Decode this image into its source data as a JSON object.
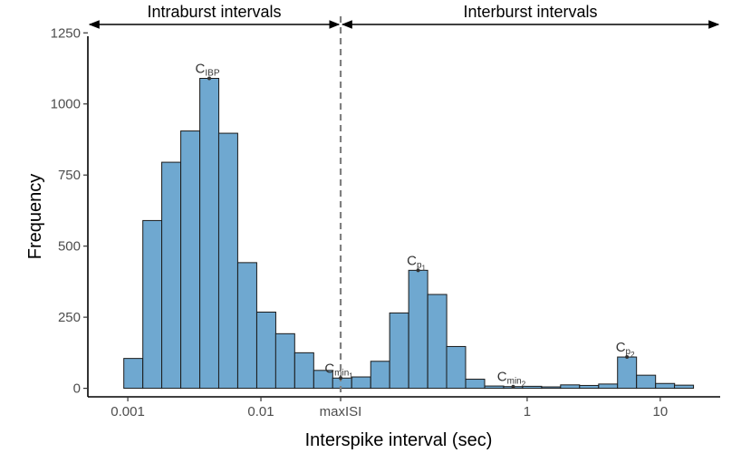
{
  "chart_data": {
    "type": "bar",
    "xlabel": "Interspike interval (sec)",
    "ylabel": "Frequency",
    "x_scale": "log10",
    "xlim_log10": [
      -3.3,
      1.45
    ],
    "ylim": [
      -30,
      1270
    ],
    "y_ticks": [
      0,
      250,
      500,
      750,
      1000,
      1250
    ],
    "y_tick_labels": [
      "0",
      "250",
      "500",
      "750",
      "1000",
      "1250"
    ],
    "x_ticks": [
      {
        "value": 0.001,
        "label": "0.001"
      },
      {
        "value": 0.01,
        "label": "0.01"
      },
      {
        "value": 0.0397,
        "label": "maxISI"
      },
      {
        "value": 1,
        "label": "1"
      },
      {
        "value": 10,
        "label": "10"
      }
    ],
    "bin_width_log10": 0.1427,
    "bins": [
      {
        "left_log10": -3.03,
        "count": 105
      },
      {
        "left_log10": -2.887,
        "count": 590
      },
      {
        "left_log10": -2.745,
        "count": 795
      },
      {
        "left_log10": -2.602,
        "count": 905
      },
      {
        "left_log10": -2.459,
        "count": 1090
      },
      {
        "left_log10": -2.317,
        "count": 897
      },
      {
        "left_log10": -2.174,
        "count": 442
      },
      {
        "left_log10": -2.031,
        "count": 268
      },
      {
        "left_log10": -1.889,
        "count": 192
      },
      {
        "left_log10": -1.746,
        "count": 125
      },
      {
        "left_log10": -1.603,
        "count": 63
      },
      {
        "left_log10": -1.461,
        "count": 36
      },
      {
        "left_log10": -1.318,
        "count": 40
      },
      {
        "left_log10": -1.175,
        "count": 95
      },
      {
        "left_log10": -1.033,
        "count": 265
      },
      {
        "left_log10": -0.89,
        "count": 415
      },
      {
        "left_log10": -0.747,
        "count": 330
      },
      {
        "left_log10": -0.605,
        "count": 147
      },
      {
        "left_log10": -0.462,
        "count": 32
      },
      {
        "left_log10": -0.319,
        "count": 8
      },
      {
        "left_log10": -0.177,
        "count": 6
      },
      {
        "left_log10": -0.034,
        "count": 7
      },
      {
        "left_log10": 0.109,
        "count": 5
      },
      {
        "left_log10": 0.251,
        "count": 12
      },
      {
        "left_log10": 0.394,
        "count": 10
      },
      {
        "left_log10": 0.537,
        "count": 15
      },
      {
        "left_log10": 0.679,
        "count": 110
      },
      {
        "left_log10": 0.822,
        "count": 46
      },
      {
        "left_log10": 0.965,
        "count": 17
      },
      {
        "left_log10": 1.107,
        "count": 11
      }
    ],
    "maxISI_log10": -1.401,
    "regions": [
      {
        "label": "Intraburst intervals",
        "from_log10": -3.3,
        "to_log10": -1.401
      },
      {
        "label": "Interburst intervals",
        "from_log10": -1.401,
        "to_log10": 1.45
      }
    ],
    "peaks": [
      {
        "main": "C",
        "sub": "IBP",
        "subsub": "",
        "x_log10": -2.388,
        "y": 1090
      },
      {
        "main": "C",
        "sub": "min",
        "subsub": "1",
        "x_log10": -1.401,
        "y": 36
      },
      {
        "main": "C",
        "sub": "p",
        "subsub": "1",
        "x_log10": -0.819,
        "y": 415
      },
      {
        "main": "C",
        "sub": "min",
        "subsub": "2",
        "x_log10": -0.105,
        "y": 6
      },
      {
        "main": "C",
        "sub": "p",
        "subsub": "2",
        "x_log10": 0.75,
        "y": 110
      }
    ],
    "colors": {
      "bar_fill": "#6fa8d0",
      "bar_stroke": "#1a1a1a",
      "cutoff_line": "#808080",
      "axis": "#000000"
    }
  }
}
